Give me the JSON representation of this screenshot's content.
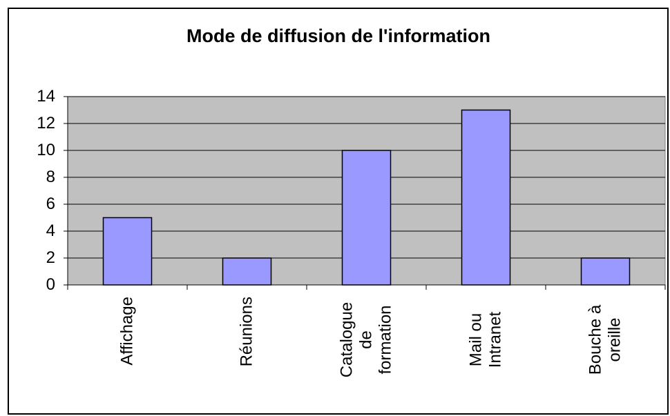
{
  "chart_data": {
    "type": "bar",
    "title": "Mode de diffusion de l'information",
    "categories": [
      "Affichage",
      "Réunions",
      "Catalogue de formation",
      "Mail ou Intranet",
      "Bouche à oreille"
    ],
    "values": [
      5,
      2,
      10,
      13,
      2
    ],
    "color": "#9999ff",
    "ylim": [
      0,
      14
    ],
    "yticks": [
      0,
      2,
      4,
      6,
      8,
      10,
      12,
      14
    ],
    "grid": true
  }
}
